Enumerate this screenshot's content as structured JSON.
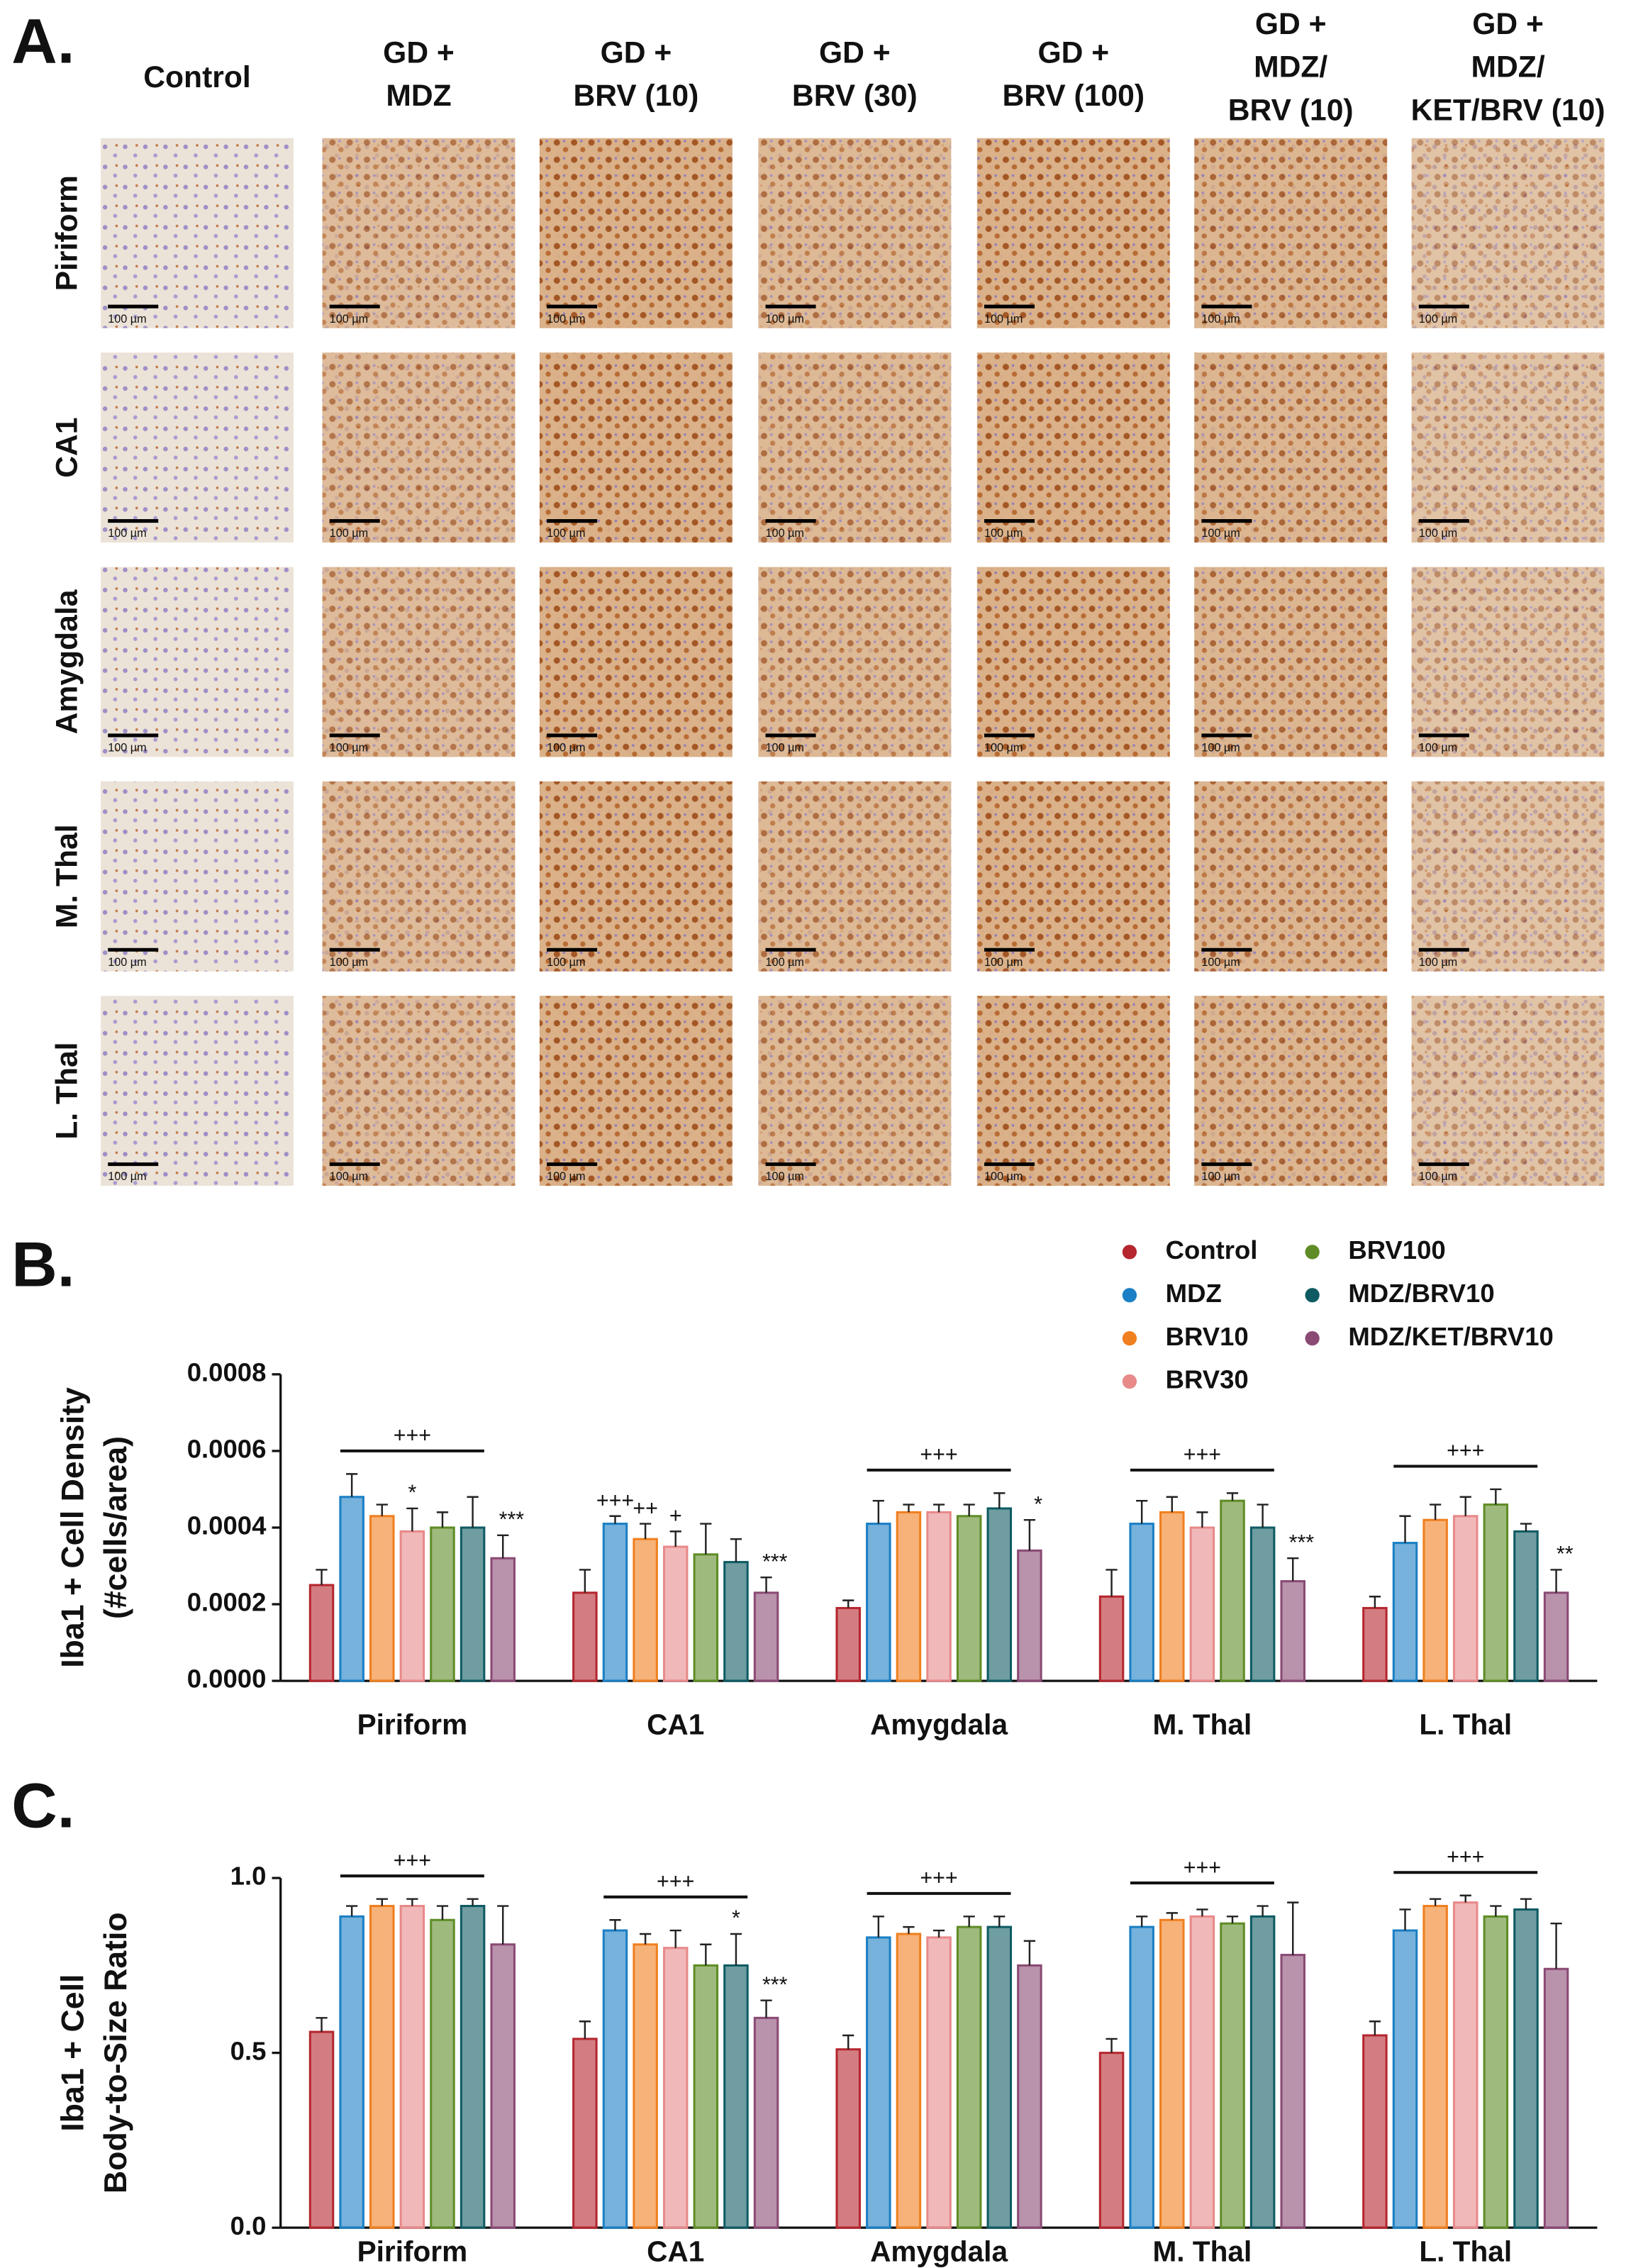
{
  "panel_a": {
    "label": "A.",
    "columns": [
      [
        "Control"
      ],
      [
        "GD +",
        "MDZ"
      ],
      [
        "GD +",
        "BRV (10)"
      ],
      [
        "GD +",
        "BRV (30)"
      ],
      [
        "GD +",
        "BRV (100)"
      ],
      [
        "GD +",
        "MDZ/",
        "BRV (10)"
      ],
      [
        "GD +",
        "MDZ/",
        "KET/BRV (10)"
      ]
    ],
    "rows": [
      "Piriform",
      "CA1",
      "Amygdala",
      "M. Thal",
      "L. Thal"
    ],
    "scale_bar": "100 µm"
  },
  "chart_data": [
    {
      "type": "bar",
      "panel": "B.",
      "ylabel": [
        "Iba1 + Cell Density",
        "(#cells/area)"
      ],
      "categories": [
        "Piriform",
        "CA1",
        "Amygdala",
        "M. Thal",
        "L. Thal"
      ],
      "ylim": [
        0,
        0.0008
      ],
      "yticks": [
        {
          "value": 0,
          "label": "0.0000"
        },
        {
          "value": 0.0002,
          "label": "0.0002"
        },
        {
          "value": 0.0004,
          "label": "0.0004"
        },
        {
          "value": 0.0006,
          "label": "0.0006"
        },
        {
          "value": 0.0008,
          "label": "0.0008"
        }
      ],
      "legend": "top-right",
      "group_labels": [
        "+++",
        null,
        "+++",
        "+++",
        "+++"
      ],
      "series": [
        {
          "name": "Control",
          "color": "#b5262e",
          "values": [
            0.00025,
            0.00023,
            0.00019,
            0.00022,
            0.00019
          ],
          "errors": [
            4e-05,
            6e-05,
            2e-05,
            7e-05,
            3e-05
          ],
          "marks": [
            null,
            null,
            null,
            null,
            null
          ]
        },
        {
          "name": "MDZ",
          "color": "#1a7fc4",
          "values": [
            0.00048,
            0.00041,
            0.00041,
            0.00041,
            0.00036
          ],
          "errors": [
            6e-05,
            2e-05,
            6e-05,
            6e-05,
            7e-05
          ],
          "marks": [
            null,
            "+++",
            null,
            null,
            null
          ]
        },
        {
          "name": "BRV10",
          "color": "#f07f1f",
          "values": [
            0.00043,
            0.00037,
            0.00044,
            0.00044,
            0.00042
          ],
          "errors": [
            3e-05,
            4e-05,
            2e-05,
            4e-05,
            4e-05
          ],
          "marks": [
            null,
            "++",
            null,
            null,
            null
          ]
        },
        {
          "name": "BRV30",
          "color": "#e8898a",
          "values": [
            0.00039,
            0.00035,
            0.00044,
            0.0004,
            0.00043
          ],
          "errors": [
            6e-05,
            4e-05,
            2e-05,
            4e-05,
            5e-05
          ],
          "marks": [
            "*",
            "+",
            null,
            null,
            null
          ]
        },
        {
          "name": "BRV100",
          "color": "#5f8c26",
          "values": [
            0.0004,
            0.00033,
            0.00043,
            0.00047,
            0.00046
          ],
          "errors": [
            4e-05,
            8e-05,
            3e-05,
            2e-05,
            4e-05
          ],
          "marks": [
            null,
            null,
            null,
            null,
            null
          ]
        },
        {
          "name": "MDZ/BRV10",
          "color": "#0f5b63",
          "values": [
            0.0004,
            0.00031,
            0.00045,
            0.0004,
            0.00039
          ],
          "errors": [
            8e-05,
            6e-05,
            4e-05,
            6e-05,
            2e-05
          ],
          "marks": [
            null,
            null,
            null,
            null,
            null
          ]
        },
        {
          "name": "MDZ/KET/BRV10",
          "color": "#8a4a74",
          "values": [
            0.00032,
            0.00023,
            0.00034,
            0.00026,
            0.00023
          ],
          "errors": [
            6e-05,
            4e-05,
            8e-05,
            6e-05,
            6e-05
          ],
          "marks": [
            "***",
            "***",
            "*",
            "***",
            "**"
          ]
        }
      ]
    },
    {
      "type": "bar",
      "panel": "C.",
      "ylabel": [
        "Iba1 + Cell",
        "Body-to-Size Ratio"
      ],
      "categories": [
        "Piriform",
        "CA1",
        "Amygdala",
        "M. Thal",
        "L. Thal"
      ],
      "ylim": [
        0,
        1.0
      ],
      "yticks": [
        {
          "value": 0,
          "label": "0.0"
        },
        0.5,
        {
          "value": 1.0,
          "label": "1.0"
        }
      ],
      "group_labels": [
        "+++",
        "+++",
        "+++",
        "+++",
        "+++"
      ],
      "series": [
        {
          "color": "#b5262e",
          "values": [
            0.56,
            0.54,
            0.51,
            0.5,
            0.55
          ],
          "errors": [
            0.04,
            0.05,
            0.04,
            0.04,
            0.04
          ],
          "marks": [
            null,
            null,
            null,
            null,
            null
          ]
        },
        {
          "color": "#1a7fc4",
          "values": [
            0.89,
            0.85,
            0.83,
            0.86,
            0.85
          ],
          "errors": [
            0.03,
            0.03,
            0.06,
            0.03,
            0.06
          ],
          "marks": [
            null,
            null,
            null,
            null,
            null
          ]
        },
        {
          "color": "#f07f1f",
          "values": [
            0.92,
            0.81,
            0.84,
            0.88,
            0.92
          ],
          "errors": [
            0.02,
            0.03,
            0.02,
            0.02,
            0.02
          ],
          "marks": [
            null,
            null,
            null,
            null,
            null
          ]
        },
        {
          "color": "#e8898a",
          "values": [
            0.92,
            0.8,
            0.83,
            0.89,
            0.93
          ],
          "errors": [
            0.02,
            0.05,
            0.02,
            0.02,
            0.02
          ],
          "marks": [
            null,
            null,
            null,
            null,
            null
          ]
        },
        {
          "color": "#5f8c26",
          "values": [
            0.88,
            0.75,
            0.86,
            0.87,
            0.89
          ],
          "errors": [
            0.04,
            0.06,
            0.03,
            0.02,
            0.03
          ],
          "marks": [
            null,
            null,
            null,
            null,
            null
          ]
        },
        {
          "color": "#0f5b63",
          "values": [
            0.92,
            0.75,
            0.86,
            0.89,
            0.91
          ],
          "errors": [
            0.02,
            0.09,
            0.03,
            0.03,
            0.03
          ],
          "marks": [
            null,
            "*",
            null,
            null,
            null
          ]
        },
        {
          "color": "#8a4a74",
          "values": [
            0.81,
            0.6,
            0.75,
            0.78,
            0.74
          ],
          "errors": [
            0.11,
            0.05,
            0.07,
            0.15,
            0.13
          ],
          "marks": [
            null,
            "***",
            null,
            null,
            null
          ]
        }
      ]
    }
  ]
}
